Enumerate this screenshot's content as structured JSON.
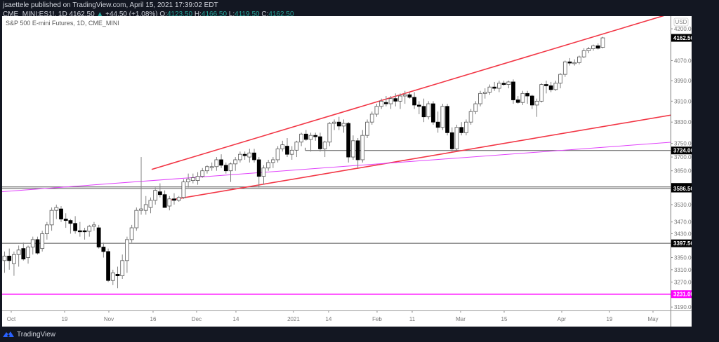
{
  "header": {
    "publish_line": "jsaettele published on TradingView.com, April 15, 2021 17:39:02 EDT",
    "symbol": "CME_MINI:ES1!, 1D",
    "last": "4162.50",
    "change": "+44.50 (+1.08%)",
    "o_label": "O:",
    "o": "4123.50",
    "h_label": "H:",
    "h": "4166.50",
    "l_label": "L:",
    "l": "4119.50",
    "c_label": "C:",
    "c": "4162.50"
  },
  "chart_title": "S&P 500 E-mini Futures, 1D, CME_MINI",
  "currency": "USD",
  "footer": {
    "brand": "TradingView"
  },
  "colors": {
    "trendline": "#f23645",
    "pink_line": "#e040fb",
    "magenta": "#ff00ff",
    "level": "#555555",
    "label_bg": "#000000"
  },
  "chart_data": {
    "type": "candlestick",
    "title": "S&P 500 E-mini Futures, 1D, CME_MINI",
    "xlabel": "",
    "ylabel": "USD",
    "y_scale": "log",
    "ylim": [
      3160,
      4260
    ],
    "y_ticks": [
      4200,
      4070,
      3990,
      3910,
      3830,
      3750,
      3700,
      3650,
      3530,
      3470,
      3430,
      3350,
      3310,
      3270,
      3190
    ],
    "x_ticks": [
      {
        "label": "Oct",
        "x": 16
      },
      {
        "label": "19",
        "x": 92
      },
      {
        "label": "Nov",
        "x": 155
      },
      {
        "label": "16",
        "x": 218
      },
      {
        "label": "Dec",
        "x": 280
      },
      {
        "label": "14",
        "x": 336
      },
      {
        "label": "2021",
        "x": 418
      },
      {
        "label": "14",
        "x": 468
      },
      {
        "label": "Feb",
        "x": 537
      },
      {
        "label": "11",
        "x": 587
      },
      {
        "label": "Mar",
        "x": 656
      },
      {
        "label": "15",
        "x": 718
      },
      {
        "label": "Apr",
        "x": 800
      },
      {
        "label": "19",
        "x": 868
      },
      {
        "label": "May",
        "x": 930
      }
    ],
    "price_labels": [
      {
        "value": "4162.50",
        "price": 4162.5,
        "style": "black"
      },
      {
        "value": "3724.00",
        "price": 3724,
        "style": "black"
      },
      {
        "value": "3592.25",
        "price": 3592.25,
        "style": "black"
      },
      {
        "value": "3586.50",
        "price": 3586.5,
        "style": "black"
      },
      {
        "value": "3397.50",
        "price": 3397.5,
        "style": "black"
      },
      {
        "value": "3231.00",
        "price": 3231,
        "style": "magenta"
      }
    ],
    "horizontal_levels": [
      {
        "price": 3724,
        "x_start": 432
      },
      {
        "price": 3592.25,
        "x_start": 0
      },
      {
        "price": 3586.5,
        "x_start": 0
      },
      {
        "price": 3397.5,
        "x_start": 0
      },
      {
        "price": 3231,
        "x_start": 0,
        "color": "magenta"
      }
    ],
    "trendlines": [
      {
        "name": "upper-channel",
        "color": "red",
        "x1": 216,
        "p1": 3655,
        "x2": 982,
        "p2": 4290
      },
      {
        "name": "lower-channel",
        "color": "red",
        "x1": 240,
        "p1": 3545,
        "x2": 982,
        "p2": 3870
      },
      {
        "name": "pink-trend",
        "color": "pink",
        "x1": 0,
        "p1": 3575,
        "x2": 982,
        "p2": 3760
      }
    ],
    "candles": [
      [
        3340,
        3370,
        3300,
        3355
      ],
      [
        3355,
        3380,
        3310,
        3340
      ],
      [
        3330,
        3370,
        3290,
        3360
      ],
      [
        3360,
        3390,
        3320,
        3375
      ],
      [
        3380,
        3400,
        3340,
        3345
      ],
      [
        3350,
        3390,
        3330,
        3385
      ],
      [
        3385,
        3420,
        3360,
        3410
      ],
      [
        3410,
        3420,
        3360,
        3365
      ],
      [
        3380,
        3440,
        3370,
        3430
      ],
      [
        3430,
        3470,
        3410,
        3460
      ],
      [
        3460,
        3520,
        3440,
        3510
      ],
      [
        3510,
        3530,
        3480,
        3520
      ],
      [
        3515,
        3525,
        3470,
        3480
      ],
      [
        3480,
        3500,
        3450,
        3475
      ],
      [
        3475,
        3480,
        3430,
        3465
      ],
      [
        3465,
        3490,
        3430,
        3440
      ],
      [
        3440,
        3470,
        3420,
        3438
      ],
      [
        3440,
        3450,
        3410,
        3438
      ],
      [
        3438,
        3460,
        3420,
        3455
      ],
      [
        3455,
        3470,
        3440,
        3460
      ],
      [
        3450,
        3460,
        3380,
        3385
      ],
      [
        3385,
        3400,
        3350,
        3370
      ],
      [
        3370,
        3380,
        3270,
        3275
      ],
      [
        3275,
        3310,
        3260,
        3300
      ],
      [
        3295,
        3320,
        3250,
        3290
      ],
      [
        3290,
        3360,
        3280,
        3340
      ],
      [
        3340,
        3420,
        3300,
        3410
      ],
      [
        3410,
        3460,
        3400,
        3450
      ],
      [
        3450,
        3520,
        3440,
        3510
      ],
      [
        3510,
        3700,
        3495,
        3515
      ],
      [
        3510,
        3560,
        3495,
        3530
      ],
      [
        3520,
        3555,
        3500,
        3545
      ],
      [
        3545,
        3590,
        3530,
        3580
      ],
      [
        3575,
        3605,
        3555,
        3565
      ],
      [
        3565,
        3580,
        3520,
        3520
      ],
      [
        3525,
        3560,
        3510,
        3550
      ],
      [
        3550,
        3570,
        3530,
        3545
      ],
      [
        3545,
        3560,
        3540,
        3555
      ],
      [
        3555,
        3620,
        3550,
        3610
      ],
      [
        3610,
        3640,
        3590,
        3620
      ],
      [
        3615,
        3640,
        3605,
        3625
      ],
      [
        3615,
        3645,
        3600,
        3630
      ],
      [
        3630,
        3660,
        3625,
        3650
      ],
      [
        3650,
        3670,
        3640,
        3665
      ],
      [
        3665,
        3680,
        3650,
        3665
      ],
      [
        3665,
        3700,
        3650,
        3690
      ],
      [
        3690,
        3710,
        3660,
        3670
      ],
      [
        3670,
        3680,
        3640,
        3650
      ],
      [
        3650,
        3680,
        3610,
        3675
      ],
      [
        3675,
        3700,
        3650,
        3690
      ],
      [
        3690,
        3720,
        3680,
        3710
      ],
      [
        3710,
        3720,
        3690,
        3705
      ],
      [
        3700,
        3730,
        3680,
        3715
      ],
      [
        3715,
        3730,
        3680,
        3690
      ],
      [
        3690,
        3700,
        3590,
        3630
      ],
      [
        3630,
        3670,
        3600,
        3660
      ],
      [
        3660,
        3690,
        3650,
        3680
      ],
      [
        3680,
        3700,
        3660,
        3690
      ],
      [
        3690,
        3740,
        3680,
        3730
      ],
      [
        3730,
        3760,
        3720,
        3745
      ],
      [
        3740,
        3770,
        3700,
        3710
      ],
      [
        3710,
        3740,
        3690,
        3725
      ],
      [
        3725,
        3760,
        3700,
        3755
      ],
      [
        3755,
        3790,
        3740,
        3785
      ],
      [
        3785,
        3800,
        3760,
        3765
      ],
      [
        3765,
        3790,
        3720,
        3780
      ],
      [
        3780,
        3790,
        3760,
        3775
      ],
      [
        3775,
        3790,
        3720,
        3730
      ],
      [
        3730,
        3760,
        3700,
        3755
      ],
      [
        3755,
        3830,
        3740,
        3825
      ],
      [
        3825,
        3840,
        3800,
        3830
      ],
      [
        3830,
        3850,
        3800,
        3815
      ],
      [
        3815,
        3840,
        3790,
        3825
      ],
      [
        3825,
        3830,
        3680,
        3700
      ],
      [
        3700,
        3780,
        3690,
        3760
      ],
      [
        3760,
        3770,
        3660,
        3690
      ],
      [
        3690,
        3800,
        3680,
        3780
      ],
      [
        3780,
        3840,
        3770,
        3830
      ],
      [
        3830,
        3870,
        3820,
        3860
      ],
      [
        3860,
        3900,
        3850,
        3890
      ],
      [
        3890,
        3920,
        3880,
        3910
      ],
      [
        3905,
        3930,
        3890,
        3900
      ],
      [
        3900,
        3930,
        3880,
        3920
      ],
      [
        3920,
        3940,
        3890,
        3910
      ],
      [
        3910,
        3940,
        3880,
        3930
      ],
      [
        3930,
        3950,
        3900,
        3935
      ],
      [
        3935,
        3945,
        3920,
        3925
      ],
      [
        3925,
        3945,
        3880,
        3895
      ],
      [
        3895,
        3910,
        3860,
        3890
      ],
      [
        3890,
        3920,
        3830,
        3850
      ],
      [
        3850,
        3910,
        3840,
        3900
      ],
      [
        3900,
        3910,
        3820,
        3830
      ],
      [
        3830,
        3870,
        3790,
        3810
      ],
      [
        3810,
        3900,
        3800,
        3890
      ],
      [
        3890,
        3900,
        3780,
        3790
      ],
      [
        3790,
        3810,
        3720,
        3730
      ],
      [
        3730,
        3820,
        3725,
        3810
      ],
      [
        3810,
        3830,
        3780,
        3790
      ],
      [
        3790,
        3840,
        3780,
        3830
      ],
      [
        3830,
        3880,
        3820,
        3870
      ],
      [
        3870,
        3910,
        3860,
        3900
      ],
      [
        3900,
        3950,
        3890,
        3940
      ],
      [
        3940,
        3960,
        3920,
        3945
      ],
      [
        3945,
        3975,
        3935,
        3965
      ],
      [
        3965,
        3985,
        3950,
        3960
      ],
      [
        3960,
        3990,
        3945,
        3980
      ],
      [
        3980,
        3990,
        3970,
        3975
      ],
      [
        3975,
        3990,
        3960,
        3985
      ],
      [
        3985,
        3995,
        3900,
        3915
      ],
      [
        3915,
        3930,
        3900,
        3905
      ],
      [
        3905,
        3950,
        3895,
        3940
      ],
      [
        3940,
        3950,
        3900,
        3930
      ],
      [
        3930,
        3935,
        3880,
        3895
      ],
      [
        3895,
        3920,
        3850,
        3910
      ],
      [
        3910,
        3980,
        3905,
        3975
      ],
      [
        3975,
        3990,
        3940,
        3970
      ],
      [
        3970,
        3985,
        3945,
        3955
      ],
      [
        3955,
        3990,
        3950,
        3980
      ],
      [
        3980,
        4020,
        3960,
        4015
      ],
      [
        4015,
        4070,
        4005,
        4065
      ],
      [
        4065,
        4080,
        4050,
        4060
      ],
      [
        4060,
        4075,
        4050,
        4062
      ],
      [
        4062,
        4090,
        4055,
        4085
      ],
      [
        4085,
        4120,
        4080,
        4110
      ],
      [
        4110,
        4125,
        4100,
        4118
      ],
      [
        4118,
        4135,
        4110,
        4130
      ],
      [
        4130,
        4140,
        4115,
        4120
      ],
      [
        4123.5,
        4166.5,
        4119.5,
        4162.5
      ]
    ]
  }
}
